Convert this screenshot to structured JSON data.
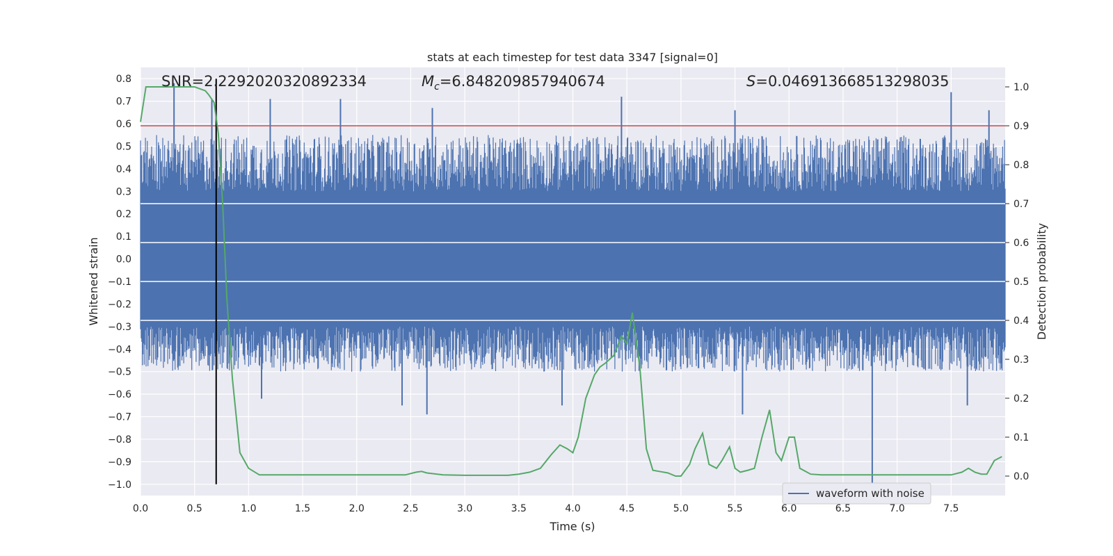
{
  "chart_data": {
    "type": "line",
    "title": "stats at each timestep for test data 3347 [signal=0]",
    "xlabel": "Time (s)",
    "ylabel_left": "Whitened strain",
    "ylabel_right": "Detection probability",
    "xlim": [
      0,
      8
    ],
    "ylim_left": [
      -1.05,
      0.85
    ],
    "ylim_right": [
      -0.05,
      1.05
    ],
    "x_ticks": [
      0.0,
      0.5,
      1.0,
      1.5,
      2.0,
      2.5,
      3.0,
      3.5,
      4.0,
      4.5,
      5.0,
      5.5,
      6.0,
      6.5,
      7.0,
      7.5
    ],
    "x_tick_labels": [
      "0.0",
      "0.5",
      "1.0",
      "1.5",
      "2.0",
      "2.5",
      "3.0",
      "3.5",
      "4.0",
      "4.5",
      "5.0",
      "5.5",
      "6.0",
      "6.5",
      "7.0",
      "7.5"
    ],
    "y_left_ticks": [
      0.8,
      0.7,
      0.6,
      0.5,
      0.4,
      0.3,
      0.2,
      0.1,
      0.0,
      -0.1,
      -0.2,
      -0.3,
      -0.4,
      -0.5,
      -0.6,
      -0.7,
      -0.8,
      -0.9,
      -1.0
    ],
    "y_left_tick_labels": [
      "0.8",
      "0.7",
      "0.6",
      "0.5",
      "0.4",
      "0.3",
      "0.2",
      "0.1",
      "0.0",
      "−0.1",
      "−0.2",
      "−0.3",
      "−0.4",
      "−0.5",
      "−0.6",
      "−0.7",
      "−0.8",
      "−0.9",
      "−1.0"
    ],
    "y_right_ticks": [
      1.0,
      0.9,
      0.8,
      0.7,
      0.6,
      0.5,
      0.4,
      0.3,
      0.2,
      0.1,
      0.0
    ],
    "y_right_tick_labels": [
      "1.0",
      "0.9",
      "0.8",
      "0.7",
      "0.6",
      "0.5",
      "0.4",
      "0.3",
      "0.2",
      "0.1",
      "0.0"
    ],
    "annotations": {
      "snr": "SNR=2.2292020320892334",
      "mc_symbol": "M",
      "mc_subscript": "c",
      "mc_value": "=6.848209857940674",
      "s_symbol": "S",
      "s_value": "=0.046913668513298035"
    },
    "grid": true,
    "legend": {
      "position": "lower-right",
      "entries": [
        "waveform with noise"
      ]
    },
    "colors": {
      "waveform": "#4c72b0",
      "probability": "#55a868",
      "threshold": "#c44e52",
      "marker": "#000000",
      "axes_background": "#eaeaf2",
      "grid": "#ffffff"
    },
    "series": [
      {
        "name": "waveform with noise",
        "axis": "left",
        "description_values": {
          "core_band": [
            -0.3,
            0.25
          ],
          "typical_peak_upper": [
            0.3,
            0.55
          ],
          "typical_peak_lower": [
            -0.5,
            -0.3
          ]
        },
        "spikes": [
          {
            "x": 0.31,
            "y": 0.78
          },
          {
            "x": 0.66,
            "y": 0.71
          },
          {
            "x": 1.2,
            "y": 0.71
          },
          {
            "x": 1.85,
            "y": 0.71
          },
          {
            "x": 2.7,
            "y": 0.67
          },
          {
            "x": 4.45,
            "y": 0.72
          },
          {
            "x": 5.5,
            "y": 0.66
          },
          {
            "x": 7.5,
            "y": 0.74
          },
          {
            "x": 7.85,
            "y": 0.66
          },
          {
            "x": 2.65,
            "y": -0.69
          },
          {
            "x": 5.57,
            "y": -0.69
          },
          {
            "x": 6.77,
            "y": -1.0
          },
          {
            "x": 3.9,
            "y": -0.65
          },
          {
            "x": 2.42,
            "y": -0.65
          },
          {
            "x": 1.12,
            "y": -0.62
          },
          {
            "x": 7.65,
            "y": -0.65
          }
        ]
      },
      {
        "name": "detection probability",
        "axis": "right",
        "x": [
          0.0,
          0.05,
          0.12,
          0.2,
          0.3,
          0.4,
          0.5,
          0.6,
          0.63,
          0.68,
          0.72,
          0.76,
          0.8,
          0.85,
          0.92,
          1.0,
          1.1,
          1.3,
          1.5,
          1.7,
          1.9,
          2.1,
          2.3,
          2.45,
          2.55,
          2.6,
          2.65,
          2.8,
          3.0,
          3.2,
          3.4,
          3.5,
          3.6,
          3.7,
          3.8,
          3.88,
          3.95,
          4.0,
          4.05,
          4.12,
          4.2,
          4.25,
          4.3,
          4.38,
          4.45,
          4.5,
          4.55,
          4.62,
          4.68,
          4.74,
          4.8,
          4.88,
          4.95,
          5.0,
          5.08,
          5.13,
          5.2,
          5.26,
          5.33,
          5.38,
          5.45,
          5.5,
          5.55,
          5.62,
          5.68,
          5.75,
          5.82,
          5.88,
          5.93,
          6.0,
          6.05,
          6.1,
          6.2,
          6.3,
          6.5,
          6.7,
          6.9,
          7.1,
          7.3,
          7.5,
          7.6,
          7.66,
          7.72,
          7.78,
          7.83,
          7.9,
          7.97
        ],
        "y": [
          0.91,
          1.0,
          1.0,
          1.0,
          1.0,
          1.0,
          1.0,
          0.99,
          0.98,
          0.96,
          0.88,
          0.7,
          0.45,
          0.25,
          0.06,
          0.02,
          0.003,
          0.003,
          0.003,
          0.003,
          0.003,
          0.003,
          0.003,
          0.003,
          0.01,
          0.012,
          0.008,
          0.003,
          0.002,
          0.002,
          0.002,
          0.005,
          0.01,
          0.02,
          0.055,
          0.08,
          0.07,
          0.06,
          0.1,
          0.2,
          0.26,
          0.28,
          0.29,
          0.31,
          0.36,
          0.34,
          0.42,
          0.28,
          0.07,
          0.015,
          0.012,
          0.008,
          0.0,
          0.0,
          0.03,
          0.07,
          0.11,
          0.03,
          0.02,
          0.04,
          0.075,
          0.02,
          0.01,
          0.015,
          0.02,
          0.1,
          0.17,
          0.06,
          0.04,
          0.1,
          0.1,
          0.02,
          0.005,
          0.003,
          0.003,
          0.003,
          0.003,
          0.003,
          0.003,
          0.003,
          0.01,
          0.02,
          0.01,
          0.005,
          0.005,
          0.04,
          0.05
        ]
      }
    ],
    "threshold_line": {
      "axis": "right",
      "y": 0.9
    },
    "marker_line": {
      "x": 0.7,
      "y_from": -1.0,
      "y_to": 0.8
    }
  }
}
